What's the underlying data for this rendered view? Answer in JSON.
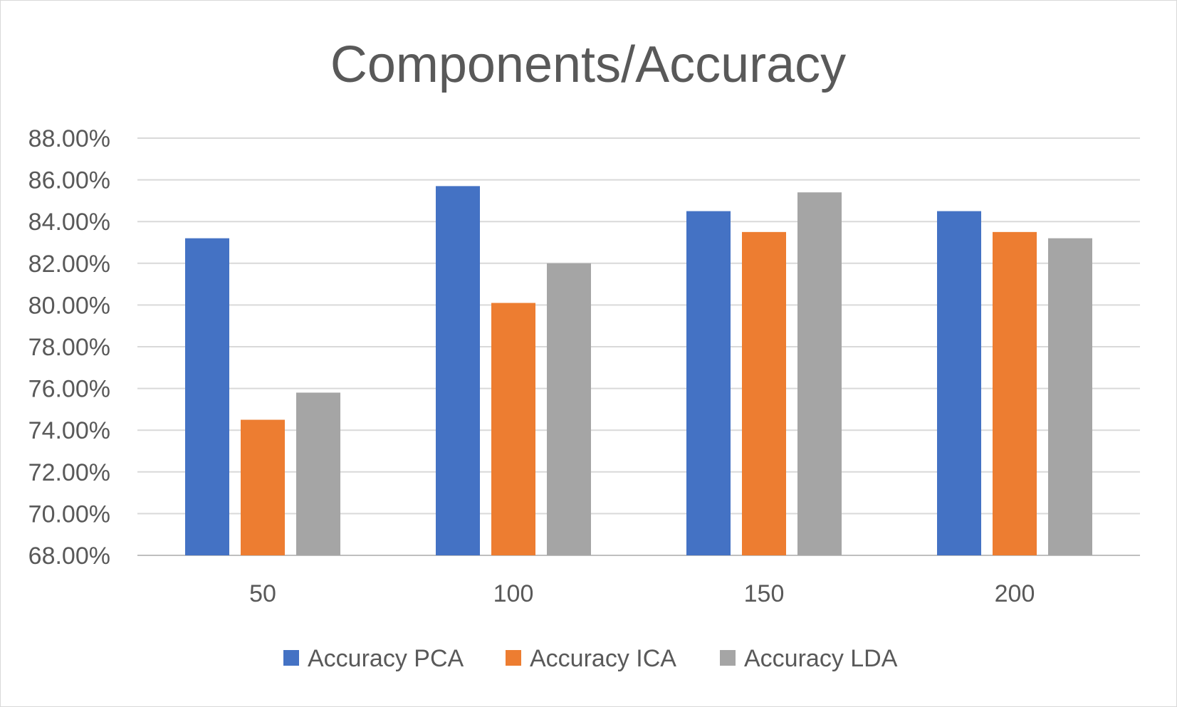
{
  "chart_data": {
    "type": "bar",
    "title": "Components/Accuracy",
    "xlabel": "",
    "ylabel": "",
    "categories": [
      "50",
      "100",
      "150",
      "200"
    ],
    "series": [
      {
        "name": "Accuracy PCA",
        "color": "#4472C4",
        "values": [
          83.2,
          85.7,
          84.5,
          84.5
        ]
      },
      {
        "name": "Accuracy ICA",
        "color": "#ED7D31",
        "values": [
          74.5,
          80.1,
          83.5,
          83.5
        ]
      },
      {
        "name": "Accuracy LDA",
        "color": "#A5A5A5",
        "values": [
          75.8,
          82.0,
          85.4,
          83.2
        ]
      }
    ],
    "ylim": [
      68,
      88
    ],
    "yticks": [
      "68.00%",
      "70.00%",
      "72.00%",
      "74.00%",
      "76.00%",
      "78.00%",
      "80.00%",
      "82.00%",
      "84.00%",
      "86.00%",
      "88.00%"
    ],
    "grid": true,
    "legend": "bottom"
  }
}
